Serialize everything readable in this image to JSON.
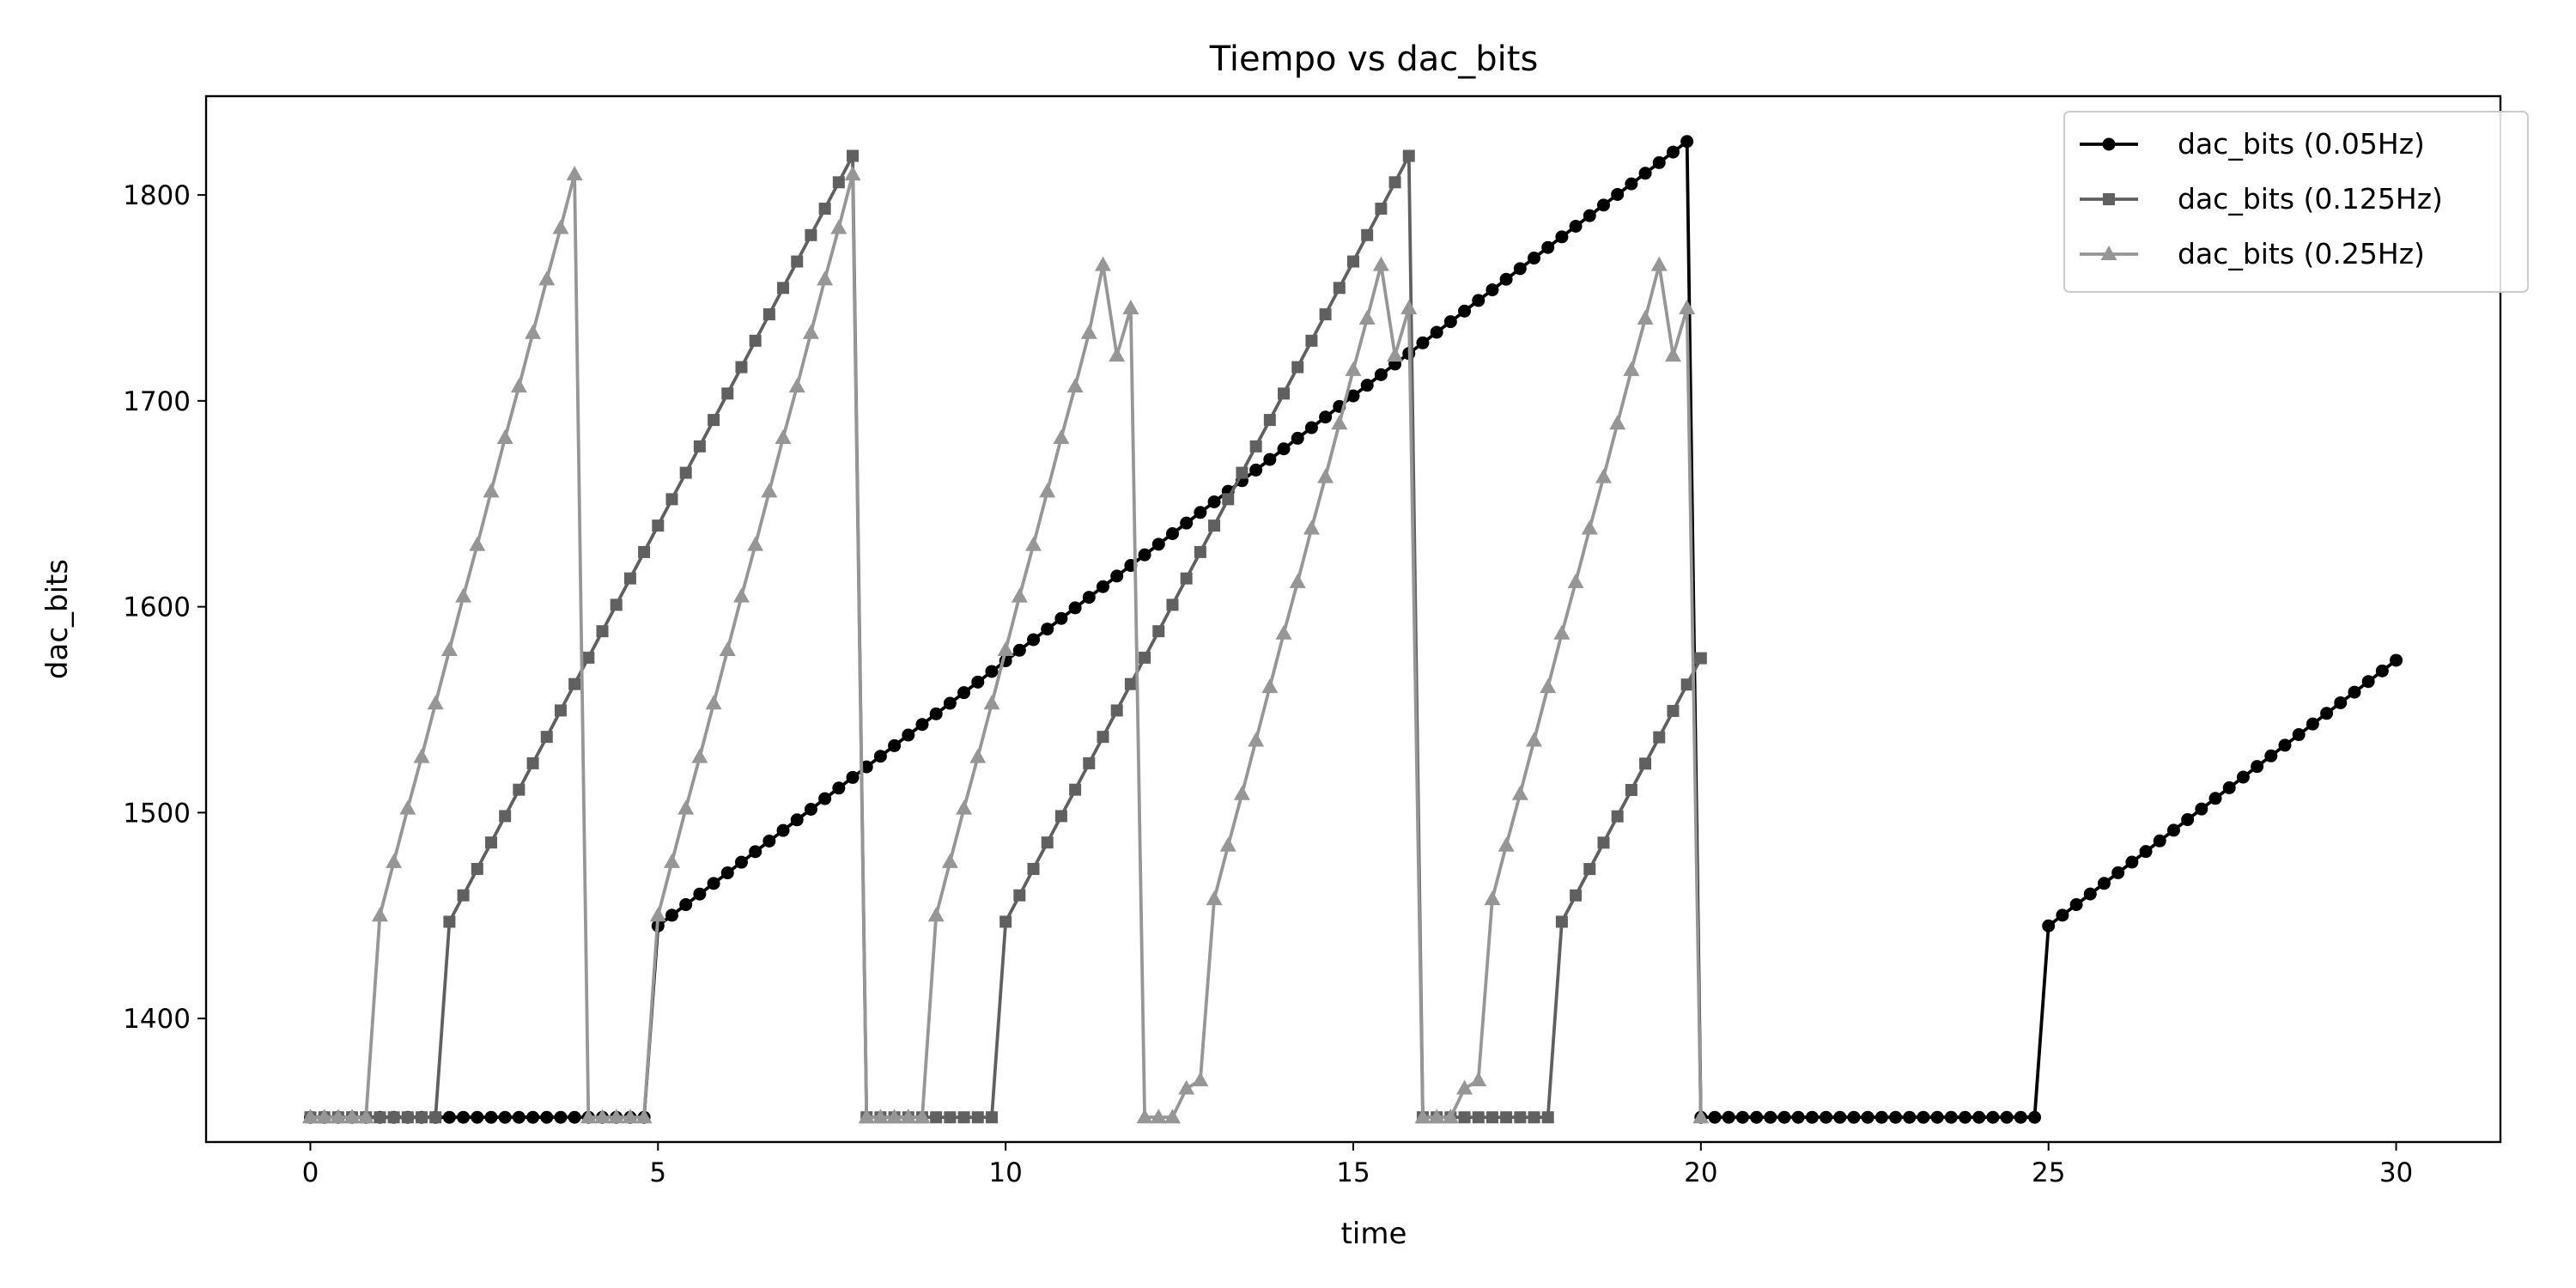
{
  "chart_data": {
    "type": "line",
    "title": "Tiempo vs dac_bits",
    "xlabel": "time",
    "ylabel": "dac_bits",
    "xlim": [
      -1.5,
      31.5
    ],
    "ylim": [
      1340,
      1848
    ],
    "xticks": [
      0,
      5,
      10,
      15,
      20,
      25,
      30
    ],
    "yticks": [
      1400,
      1500,
      1600,
      1700,
      1800
    ],
    "grid": false,
    "legend_position": "top-right",
    "series": [
      {
        "name": "dac_bits (0.05Hz)",
        "color": "#000000",
        "marker": "circle",
        "segments": [
          {
            "x_start": 0,
            "x_end": 4.8,
            "n": 25,
            "y_start": 1352,
            "y_end": 1352
          },
          {
            "x_start": 5.0,
            "x_end": 19.8,
            "n": 75,
            "y_start": 1445,
            "y_end": 1826
          },
          {
            "x_start": 20.0,
            "x_end": 24.8,
            "n": 25,
            "y_start": 1352,
            "y_end": 1352
          },
          {
            "x_start": 25.0,
            "x_end": 30.0,
            "n": 26,
            "y_start": 1445,
            "y_end": 1574
          }
        ]
      },
      {
        "name": "dac_bits (0.125Hz)",
        "color": "#606060",
        "marker": "square",
        "segments": [
          {
            "x_start": 0,
            "x_end": 1.8,
            "n": 10,
            "y_start": 1352,
            "y_end": 1352
          },
          {
            "x_start": 2.0,
            "x_end": 7.8,
            "n": 30,
            "y_start": 1447,
            "y_end": 1819
          },
          {
            "x_start": 8.0,
            "x_end": 9.8,
            "n": 10,
            "y_start": 1352,
            "y_end": 1352
          },
          {
            "x_start": 10.0,
            "x_end": 15.8,
            "n": 30,
            "y_start": 1447,
            "y_end": 1819
          },
          {
            "x_start": 16.0,
            "x_end": 17.8,
            "n": 10,
            "y_start": 1352,
            "y_end": 1352
          },
          {
            "x_start": 18.0,
            "x_end": 20.0,
            "n": 11,
            "y_start": 1447,
            "y_end": 1575
          }
        ]
      },
      {
        "name": "dac_bits (0.25Hz)",
        "color": "#969696",
        "marker": "triangle",
        "points": [
          [
            0,
            1352
          ],
          [
            0.2,
            1352
          ],
          [
            0.4,
            1352
          ],
          [
            0.6,
            1352
          ],
          [
            0.8,
            1352
          ],
          [
            1.0,
            1450
          ],
          [
            1.2,
            1476
          ],
          [
            1.4,
            1502
          ],
          [
            1.6,
            1527
          ],
          [
            1.8,
            1553
          ],
          [
            2.0,
            1579
          ],
          [
            2.2,
            1605
          ],
          [
            2.4,
            1630
          ],
          [
            2.6,
            1656
          ],
          [
            2.8,
            1682
          ],
          [
            3.0,
            1707
          ],
          [
            3.2,
            1733
          ],
          [
            3.4,
            1759
          ],
          [
            3.6,
            1784
          ],
          [
            3.8,
            1810
          ],
          [
            4.0,
            1352
          ],
          [
            4.2,
            1352
          ],
          [
            4.4,
            1352
          ],
          [
            4.6,
            1352
          ],
          [
            4.8,
            1352
          ],
          [
            5.0,
            1450
          ],
          [
            5.2,
            1476
          ],
          [
            5.4,
            1502
          ],
          [
            5.6,
            1527
          ],
          [
            5.8,
            1553
          ],
          [
            6.0,
            1579
          ],
          [
            6.2,
            1605
          ],
          [
            6.4,
            1630
          ],
          [
            6.6,
            1656
          ],
          [
            6.8,
            1682
          ],
          [
            7.0,
            1707
          ],
          [
            7.2,
            1733
          ],
          [
            7.4,
            1759
          ],
          [
            7.6,
            1784
          ],
          [
            7.8,
            1810
          ],
          [
            8.0,
            1352
          ],
          [
            8.2,
            1352
          ],
          [
            8.4,
            1352
          ],
          [
            8.6,
            1352
          ],
          [
            8.8,
            1352
          ],
          [
            9.0,
            1450
          ],
          [
            9.2,
            1476
          ],
          [
            9.4,
            1502
          ],
          [
            9.6,
            1527
          ],
          [
            9.8,
            1553
          ],
          [
            10.0,
            1579
          ],
          [
            10.2,
            1605
          ],
          [
            10.4,
            1630
          ],
          [
            10.6,
            1656
          ],
          [
            10.8,
            1682
          ],
          [
            11.0,
            1707
          ],
          [
            11.2,
            1733
          ],
          [
            11.4,
            1766
          ],
          [
            11.6,
            1722
          ],
          [
            11.8,
            1745
          ],
          [
            12.0,
            1352
          ],
          [
            12.2,
            1352
          ],
          [
            12.4,
            1352
          ],
          [
            12.6,
            1366
          ],
          [
            12.8,
            1370
          ],
          [
            13.0,
            1458
          ],
          [
            13.2,
            1484
          ],
          [
            13.4,
            1509
          ],
          [
            13.6,
            1535
          ],
          [
            13.8,
            1561
          ],
          [
            14.0,
            1587
          ],
          [
            14.2,
            1612
          ],
          [
            14.4,
            1638
          ],
          [
            14.6,
            1663
          ],
          [
            14.8,
            1689
          ],
          [
            15.0,
            1715
          ],
          [
            15.2,
            1740
          ],
          [
            15.4,
            1766
          ],
          [
            15.6,
            1722
          ],
          [
            15.8,
            1745
          ],
          [
            16.0,
            1352
          ],
          [
            16.2,
            1352
          ],
          [
            16.4,
            1352
          ],
          [
            16.6,
            1366
          ],
          [
            16.8,
            1370
          ],
          [
            17.0,
            1458
          ],
          [
            17.2,
            1484
          ],
          [
            17.4,
            1509
          ],
          [
            17.6,
            1535
          ],
          [
            17.8,
            1561
          ],
          [
            18.0,
            1587
          ],
          [
            18.2,
            1612
          ],
          [
            18.4,
            1638
          ],
          [
            18.6,
            1663
          ],
          [
            18.8,
            1689
          ],
          [
            19.0,
            1715
          ],
          [
            19.2,
            1740
          ],
          [
            19.4,
            1766
          ],
          [
            19.6,
            1722
          ],
          [
            19.8,
            1745
          ],
          [
            20.0,
            1352
          ]
        ]
      }
    ]
  }
}
